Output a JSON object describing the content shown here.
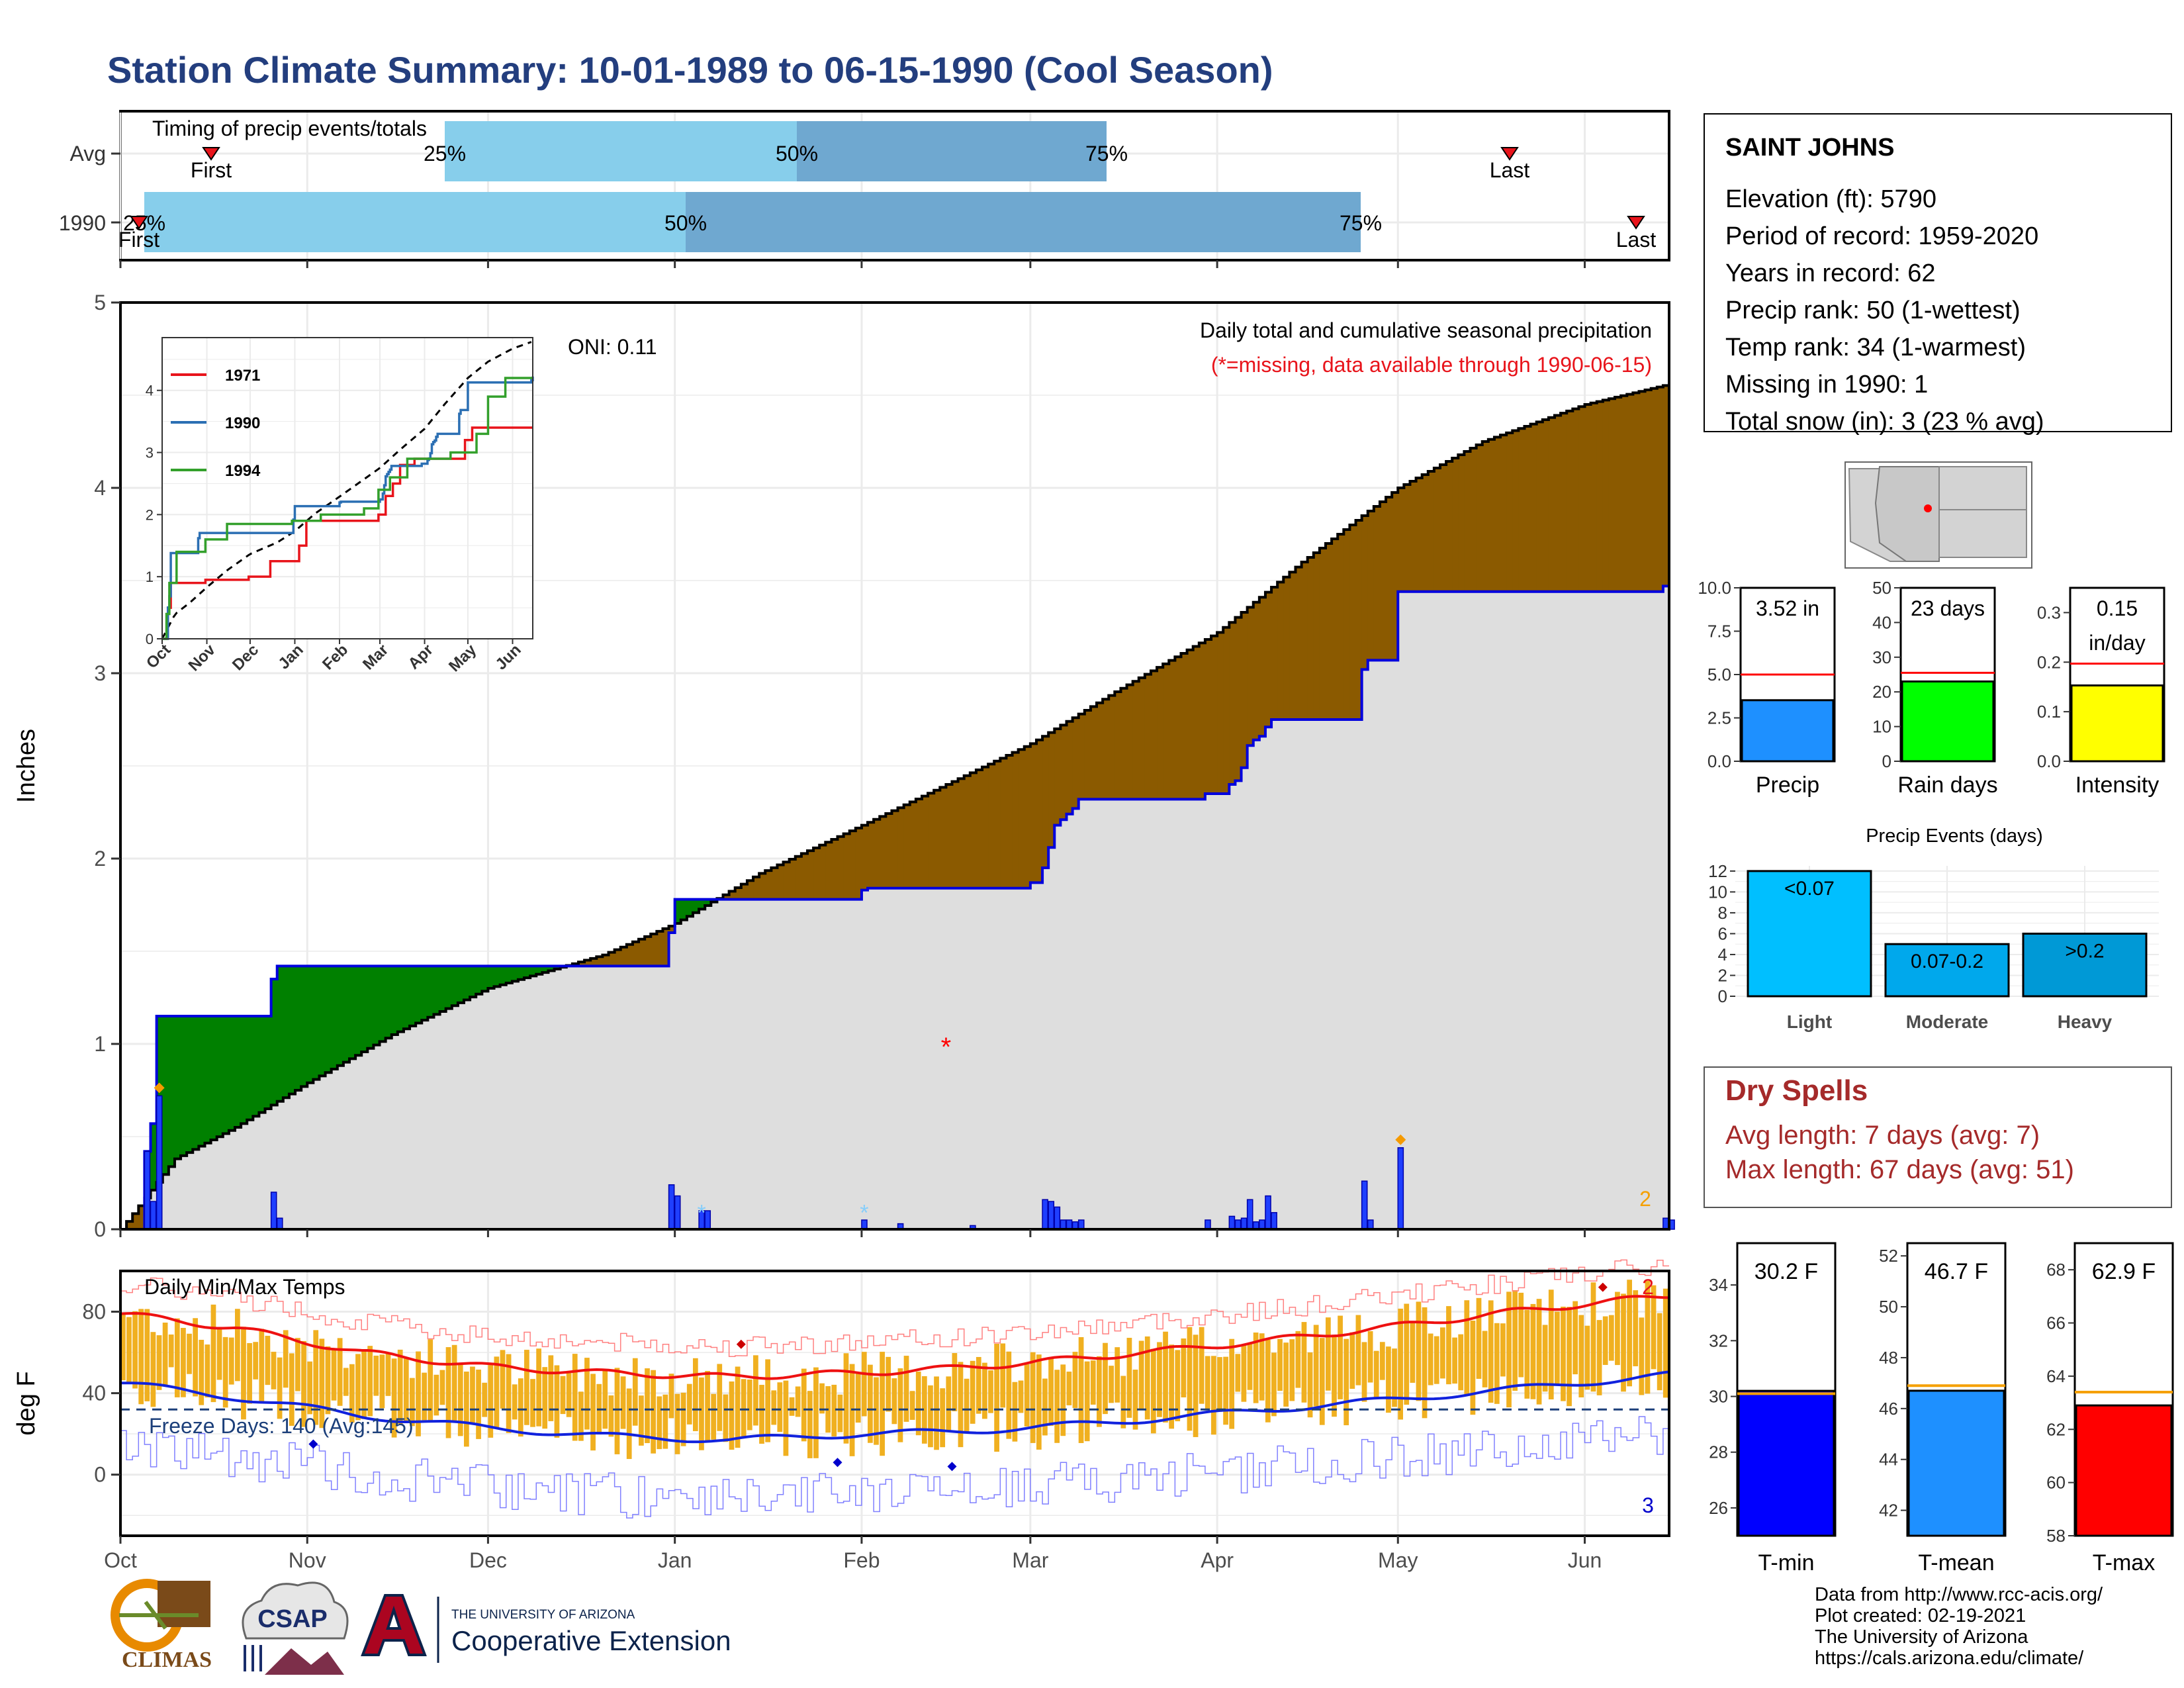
{
  "title": "Station Climate Summary: 10-01-1989 to 06-15-1990 (Cool Season)",
  "timing": {
    "label": "Timing of precip events/totals",
    "rows": [
      "Avg",
      "1990"
    ],
    "avg": {
      "p25": "25%",
      "p50": "50%",
      "p75": "75%",
      "first": "First",
      "last": "Last"
    },
    "yr": {
      "p25": "25%",
      "p50": "50%",
      "p75": "75%",
      "first": "First",
      "last": "Last"
    }
  },
  "precip_panel": {
    "ylabel": "Inches",
    "yticks": [
      "0",
      "1",
      "2",
      "3",
      "4",
      "5"
    ],
    "oni": "ONI: 0.11",
    "caption": "Daily total and cumulative seasonal precipitation",
    "missing_note": "(*=missing, data available through 1990-06-15)",
    "missing_marker": "*",
    "corner_count": "2"
  },
  "inset": {
    "yticks": [
      "0",
      "1",
      "2",
      "3",
      "4"
    ],
    "months": [
      "Oct",
      "Nov",
      "Dec",
      "Jan",
      "Feb",
      "Mar",
      "Apr",
      "May",
      "Jun"
    ],
    "legend": [
      "1971",
      "1990",
      "1994"
    ]
  },
  "temp_panel": {
    "label": "Daily Min/Max Temps",
    "ylabel": "deg F",
    "yticks": [
      "0",
      "40",
      "80"
    ],
    "freeze": "Freeze Days: 140 (Avg:145)",
    "count_hi": "2",
    "count_lo": "3"
  },
  "months_x": [
    "Oct",
    "Nov",
    "Dec",
    "Jan",
    "Feb",
    "Mar",
    "Apr",
    "May",
    "Jun"
  ],
  "station": {
    "name": "SAINT JOHNS",
    "lines": [
      "Elevation (ft): 5790",
      "Period of record: 1959-2020",
      "Years in record: 62",
      "Precip rank: 50 (1-wettest)",
      "Temp rank: 34 (1-warmest)",
      "Missing in 1990: 1",
      "Total snow (in): 3 (23 % avg)"
    ]
  },
  "mini_bars": [
    {
      "label": "Precip",
      "value_text": "3.52 in",
      "value": 3.52,
      "avg": 5.0,
      "ymax": 10,
      "ticks": [
        "0.0",
        "2.5",
        "5.0",
        "7.5",
        "10.0"
      ],
      "tickvals": [
        0,
        2.5,
        5,
        7.5,
        10
      ],
      "color": "#1e90ff"
    },
    {
      "label": "Rain days",
      "value_text": "23 days",
      "value": 23,
      "avg": 25.5,
      "ymax": 50,
      "ticks": [
        "0",
        "10",
        "20",
        "30",
        "40",
        "50"
      ],
      "tickvals": [
        0,
        10,
        20,
        30,
        40,
        50
      ],
      "color": "#00ff00"
    },
    {
      "label": "Intensity",
      "value_text": "0.15\nin/day",
      "value": 0.153,
      "avg": 0.197,
      "ymax": 0.35,
      "ticks": [
        "0.0",
        "0.1",
        "0.2",
        "0.3"
      ],
      "tickvals": [
        0,
        0.1,
        0.2,
        0.3
      ],
      "color": "#ffff00"
    }
  ],
  "events": {
    "title": "Precip Events (days)",
    "yticks": [
      "0",
      "2",
      "4",
      "6",
      "8",
      "10",
      "12"
    ],
    "bars": [
      {
        "cat": "Light",
        "label": "<0.07",
        "value": 12,
        "color": "#00bfff"
      },
      {
        "cat": "Moderate",
        "label": "0.07-0.2",
        "value": 5,
        "color": "#00a8ec"
      },
      {
        "cat": "Heavy",
        "label": ">0.2",
        "value": 6,
        "color": "#0099d6"
      }
    ]
  },
  "dry": {
    "title": "Dry Spells",
    "lines": [
      "Avg length: 7 days (avg: 7)",
      "Max length: 67 days (avg: 51)"
    ]
  },
  "temp_bars": [
    {
      "label": "T-min",
      "value_text": "30.2 F",
      "value": 30.2,
      "avg": 30.1,
      "ymin": 25,
      "ymax": 35.5,
      "ticks": [
        "26",
        "28",
        "30",
        "32",
        "34"
      ],
      "tickvals": [
        26,
        28,
        30,
        32,
        34
      ],
      "color": "#0000ff"
    },
    {
      "label": "T-mean",
      "value_text": "46.7 F",
      "value": 46.7,
      "avg": 46.9,
      "ymin": 41,
      "ymax": 52.5,
      "ticks": [
        "42",
        "44",
        "46",
        "48",
        "50",
        "52"
      ],
      "tickvals": [
        42,
        44,
        46,
        48,
        50,
        52
      ],
      "color": "#1e90ff"
    },
    {
      "label": "T-max",
      "value_text": "62.9 F",
      "value": 62.9,
      "avg": 63.4,
      "ymin": 58,
      "ymax": 69,
      "ticks": [
        "58",
        "60",
        "62",
        "64",
        "66",
        "68"
      ],
      "tickvals": [
        58,
        60,
        62,
        64,
        66,
        68
      ],
      "color": "#ff0000"
    }
  ],
  "footer": [
    "Data from http://www.rcc-acis.org/",
    "Plot created: 02-19-2021",
    "The University of Arizona",
    "https://cals.arizona.edu/climate/"
  ],
  "logos": {
    "climas": "CLIMAS",
    "csap": "CSAP",
    "ua_small": "THE UNIVERSITY OF ARIZONA",
    "ua_big": "Cooperative Extension",
    "ua_letter": "A"
  },
  "chart_data": [
    {
      "type": "area",
      "title": "Daily total and cumulative seasonal precipitation",
      "ylabel": "Inches",
      "ylim": [
        0,
        5
      ],
      "x_range": [
        "1989-10-01",
        "1990-06-15"
      ],
      "series": [
        {
          "name": "cumulative_1990",
          "x": [
            "1989-10-01",
            "1989-10-05",
            "1989-10-06",
            "1989-10-07",
            "1989-10-26",
            "1989-10-27",
            "1989-12-15",
            "1989-12-31",
            "1990-01-01",
            "1990-02-01",
            "1990-02-02",
            "1990-03-01",
            "1990-03-03",
            "1990-03-04",
            "1990-03-05",
            "1990-03-06",
            "1990-03-07",
            "1990-03-08",
            "1990-03-09",
            "1990-03-30",
            "1990-04-03",
            "1990-04-04",
            "1990-04-05",
            "1990-04-06",
            "1990-04-07",
            "1990-04-08",
            "1990-04-09",
            "1990-04-10",
            "1990-04-25",
            "1990-04-26",
            "1990-05-01",
            "1990-06-14",
            "1990-06-15"
          ],
          "y": [
            0,
            0.42,
            0.57,
            1.15,
            1.35,
            1.42,
            1.42,
            1.6,
            1.78,
            1.83,
            1.84,
            1.87,
            1.95,
            2.06,
            2.18,
            2.21,
            2.24,
            2.27,
            2.32,
            2.35,
            2.4,
            2.42,
            2.49,
            2.61,
            2.64,
            2.66,
            2.71,
            2.75,
            3.02,
            3.07,
            3.44,
            3.47,
            3.52
          ]
        },
        {
          "name": "average_cumulative",
          "x": [
            "1989-10-01",
            "1989-10-10",
            "1989-10-20",
            "1989-11-01",
            "1989-11-15",
            "1989-12-01",
            "1989-12-20",
            "1990-01-01",
            "1990-01-15",
            "1990-02-01",
            "1990-02-15",
            "1990-03-01",
            "1990-03-15",
            "1990-04-01",
            "1990-04-15",
            "1990-05-01",
            "1990-05-15",
            "1990-06-01",
            "1990-06-15"
          ],
          "y": [
            0,
            0.38,
            0.55,
            0.79,
            1.05,
            1.3,
            1.48,
            1.65,
            1.92,
            2.18,
            2.4,
            2.62,
            2.9,
            3.22,
            3.6,
            4.0,
            4.25,
            4.45,
            4.56
          ]
        }
      ],
      "bars": {
        "name": "daily_precip",
        "x": [
          "1989-10-05",
          "1989-10-06",
          "1989-10-07",
          "1989-10-26",
          "1989-10-27",
          "1989-12-31",
          "1990-01-01",
          "1990-01-05",
          "1990-01-06",
          "1990-02-01",
          "1990-02-07",
          "1990-02-19",
          "1990-03-03",
          "1990-03-04",
          "1990-03-05",
          "1990-03-06",
          "1990-03-07",
          "1990-03-08",
          "1990-03-09",
          "1990-03-30",
          "1990-04-03",
          "1990-04-04",
          "1990-04-05",
          "1990-04-06",
          "1990-04-07",
          "1990-04-08",
          "1990-04-09",
          "1990-04-10",
          "1990-04-25",
          "1990-04-26",
          "1990-05-01",
          "1990-06-14",
          "1990-06-15"
        ],
        "y": [
          0.42,
          0.15,
          0.72,
          0.2,
          0.06,
          0.24,
          0.18,
          0.1,
          0.1,
          0.05,
          0.03,
          0.02,
          0.16,
          0.15,
          0.12,
          0.05,
          0.05,
          0.04,
          0.05,
          0.05,
          0.07,
          0.05,
          0.06,
          0.16,
          0.04,
          0.05,
          0.18,
          0.09,
          0.26,
          0.05,
          0.44,
          0.06,
          0.05
        ]
      },
      "missing_x": [
        "1990-02-15"
      ]
    },
    {
      "type": "line",
      "title": "Daily Min/Max Temps",
      "ylabel": "deg F",
      "ylim": [
        -30,
        100
      ],
      "freeze_line": 32,
      "avg_max_x": [
        "1989-10-01",
        "1989-10-20",
        "1989-11-10",
        "1989-12-01",
        "1989-12-20",
        "1990-01-10",
        "1990-02-01",
        "1990-02-15",
        "1990-03-01",
        "1990-03-20",
        "1990-04-10",
        "1990-05-01",
        "1990-05-20",
        "1990-06-15"
      ],
      "avg_max_y": [
        79,
        72,
        60,
        53,
        50,
        48,
        50,
        52,
        55,
        60,
        66,
        73,
        80,
        88
      ],
      "avg_min_x": [
        "1989-10-01",
        "1989-10-20",
        "1989-11-10",
        "1989-12-01",
        "1989-12-20",
        "1990-01-10",
        "1990-02-01",
        "1990-02-15",
        "1990-03-01",
        "1990-03-20",
        "1990-04-10",
        "1990-05-01",
        "1990-05-20",
        "1990-06-15"
      ],
      "avg_min_y": [
        45,
        38,
        29,
        23,
        19,
        17,
        20,
        21,
        23,
        27,
        32,
        37,
        42,
        49
      ]
    }
  ]
}
